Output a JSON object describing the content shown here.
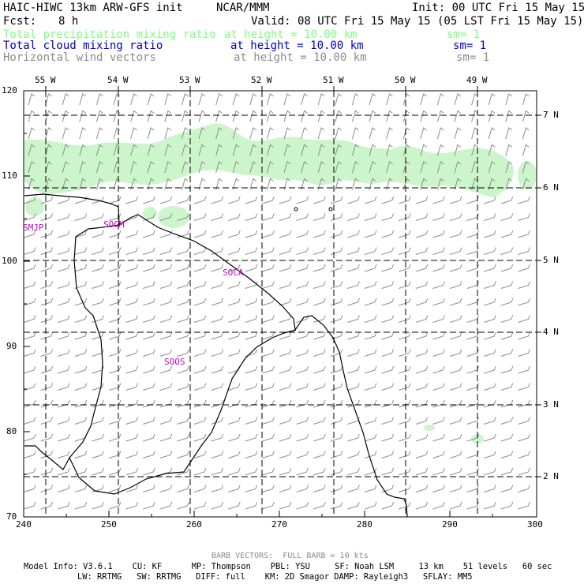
{
  "header": {
    "run_title": "HAIC-HIWC 13km ARW-GFS init",
    "center": "NCAR/MMM",
    "init": "Init: 00 UTC Fri 15 May 15",
    "fcst_label": "Fcst:",
    "fcst_value": "8 h",
    "valid": "Valid: 08 UTC Fri 15 May 15 (05 LST Fri 15 May 15)"
  },
  "fields": [
    {
      "name": "Total precipitation mixing ratio",
      "level": "at height = 10.00 km",
      "smooth": "sm= 1",
      "color": "#7fff7f"
    },
    {
      "name": "Total cloud mixing ratio",
      "level": "at height = 10.00 km",
      "smooth": "sm= 1",
      "color": "#0000c8"
    },
    {
      "name": "Horizontal wind vectors",
      "level": "at height = 10.00 km",
      "smooth": "sm= 1",
      "color": "#8c8c8c"
    }
  ],
  "map": {
    "x_grid_range": [
      240,
      300
    ],
    "y_grid_range": [
      70,
      120
    ],
    "bottom_ticks": [
      "240",
      "250",
      "260",
      "270",
      "280",
      "290",
      "300"
    ],
    "left_ticks": [
      "70",
      "80",
      "90",
      "100",
      "110",
      "120"
    ],
    "top_lon_labels": [
      "55 W",
      "54 W",
      "53 W",
      "52 W",
      "51 W",
      "50 W",
      "49 W"
    ],
    "right_lat_labels": [
      "7 N",
      "6 N",
      "5 N",
      "4 N",
      "3 N",
      "2 N"
    ],
    "place_labels": [
      "SMJP",
      "SOCM",
      "SOCA",
      "SOOS"
    ],
    "place_label_color": "#c800c8",
    "precip_color": "#ccf5cc"
  },
  "footer": {
    "barb_note": "BARB VECTORS:  FULL BARB = 10 kts",
    "model_line1": "Model Info: V3.6.1    CU: KF      MP: Thompson    PBL: YSU     SF: Noah LSM     13 km    51 levels   60 sec",
    "model_line2": "LW: RRTMG   SW: RRTMG   DIFF: full    KM: 2D Smagor DAMP: Rayleigh3   SFLAY: MM5"
  }
}
